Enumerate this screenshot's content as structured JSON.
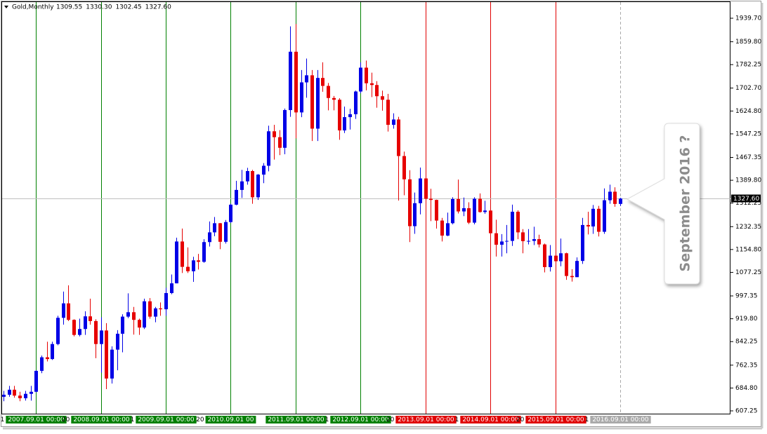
{
  "chart_data": {
    "type": "candlestick",
    "title": "Gold,Monthly",
    "header_values": [
      "1309.55",
      "1330.30",
      "1302.45",
      "1327.60"
    ],
    "last_price_label": "1327.60",
    "annotation": "September 2016 ?",
    "up_color": "#0000e6",
    "down_color": "#e60000",
    "open": [
      655,
      662,
      679,
      659,
      650,
      665,
      672,
      743,
      789,
      783,
      834,
      923,
      972,
      916,
      865,
      885,
      928,
      912,
      834,
      880,
      717,
      815,
      869,
      927,
      942,
      916,
      890,
      979,
      927,
      955,
      952,
      1007,
      1040,
      1182,
      1096,
      1081,
      1118,
      1113,
      1180,
      1213,
      1244,
      1181,
      1248,
      1307,
      1357,
      1386,
      1421,
      1332,
      1409,
      1439,
      1556,
      1536,
      1500,
      1628,
      1826,
      1620,
      1722,
      1746,
      1565,
      1737,
      1710,
      1669,
      1663,
      1559,
      1604,
      1614,
      1691,
      1772,
      1719,
      1713,
      1675,
      1663,
      1578,
      1596,
      1472,
      1393,
      1234,
      1312,
      1396,
      1327,
      1323,
      1253,
      1202,
      1244,
      1326,
      1284,
      1295,
      1246,
      1327,
      1282,
      1287,
      1210,
      1171,
      1182,
      1184,
      1283,
      1213,
      1183,
      1184,
      1190,
      1172,
      1095,
      1134,
      1115,
      1142,
      1065,
      1061,
      1116,
      1238,
      1233,
      1293,
      1215,
      1322,
      1351,
      1309.55
    ],
    "high": [
      675,
      692,
      692,
      672,
      675,
      692,
      745,
      795,
      842,
      842,
      930,
      1012,
      1033,
      918,
      920,
      945,
      988,
      918,
      925,
      905,
      826,
      881,
      935,
      1006,
      960,
      920,
      988,
      990,
      960,
      975,
      1025,
      1070,
      1195,
      1226,
      1162,
      1130,
      1140,
      1190,
      1250,
      1265,
      1245,
      1255,
      1310,
      1388,
      1425,
      1432,
      1425,
      1411,
      1448,
      1575,
      1578,
      1560,
      1633,
      1912,
      1920,
      1764,
      1803,
      1764,
      1764,
      1790,
      1720,
      1676,
      1668,
      1640,
      1632,
      1694,
      1790,
      1796,
      1755,
      1726,
      1694,
      1683,
      1617,
      1605,
      1487,
      1424,
      1348,
      1433,
      1425,
      1361,
      1324,
      1262,
      1280,
      1332,
      1392,
      1331,
      1315,
      1332,
      1345,
      1320,
      1288,
      1256,
      1207,
      1238,
      1307,
      1288,
      1224,
      1224,
      1232,
      1205,
      1175,
      1170,
      1157,
      1192,
      1144,
      1088,
      1128,
      1262,
      1283,
      1306,
      1303,
      1362,
      1375,
      1366,
      1330.3
    ],
    "low": [
      640,
      655,
      652,
      640,
      642,
      642,
      670,
      735,
      775,
      780,
      830,
      900,
      912,
      860,
      860,
      865,
      900,
      786,
      737,
      681,
      700,
      745,
      806,
      922,
      866,
      865,
      885,
      920,
      908,
      930,
      930,
      1003,
      1040,
      1075,
      1075,
      1045,
      1087,
      1110,
      1165,
      1200,
      1156,
      1175,
      1245,
      1305,
      1330,
      1375,
      1310,
      1323,
      1380,
      1420,
      1460,
      1475,
      1478,
      1605,
      1532,
      1604,
      1670,
      1523,
      1523,
      1690,
      1627,
      1627,
      1527,
      1550,
      1562,
      1598,
      1685,
      1695,
      1672,
      1636,
      1626,
      1555,
      1565,
      1321,
      1339,
      1180,
      1208,
      1274,
      1292,
      1251,
      1226,
      1182,
      1200,
      1240,
      1277,
      1268,
      1241,
      1240,
      1280,
      1276,
      1205,
      1131,
      1131,
      1142,
      1167,
      1190,
      1142,
      1172,
      1170,
      1162,
      1077,
      1080,
      1099,
      1098,
      1052,
      1046,
      1061,
      1106,
      1206,
      1208,
      1199,
      1208,
      1310,
      1300,
      1302.45
    ],
    "close": [
      662,
      679,
      659,
      650,
      665,
      672,
      743,
      789,
      783,
      834,
      923,
      972,
      916,
      865,
      885,
      928,
      912,
      834,
      880,
      717,
      815,
      869,
      927,
      942,
      916,
      890,
      979,
      927,
      955,
      952,
      1007,
      1040,
      1182,
      1096,
      1081,
      1118,
      1113,
      1180,
      1213,
      1244,
      1181,
      1248,
      1307,
      1357,
      1386,
      1421,
      1332,
      1409,
      1439,
      1556,
      1536,
      1500,
      1628,
      1826,
      1620,
      1722,
      1746,
      1565,
      1737,
      1710,
      1669,
      1663,
      1559,
      1604,
      1614,
      1691,
      1772,
      1719,
      1713,
      1675,
      1663,
      1578,
      1596,
      1472,
      1393,
      1234,
      1312,
      1396,
      1327,
      1323,
      1253,
      1202,
      1244,
      1326,
      1284,
      1295,
      1246,
      1327,
      1282,
      1287,
      1210,
      1171,
      1182,
      1184,
      1283,
      1213,
      1183,
      1184,
      1190,
      1172,
      1095,
      1134,
      1115,
      1142,
      1065,
      1061,
      1116,
      1238,
      1233,
      1293,
      1215,
      1322,
      1351,
      1309.55,
      1327.6
    ],
    "ylim": [
      597.7,
      1994.4
    ],
    "yticks": [
      {
        "value": 607.25,
        "label": "607.25"
      },
      {
        "value": 684.8,
        "label": "684.80"
      },
      {
        "value": 762.35,
        "label": "762.35"
      },
      {
        "value": 842.25,
        "label": "842.25"
      },
      {
        "value": 919.8,
        "label": "919.80"
      },
      {
        "value": 997.35,
        "label": "997.35"
      },
      {
        "value": 1077.25,
        "label": "1077.25"
      },
      {
        "value": 1154.8,
        "label": "1154.80"
      },
      {
        "value": 1232.35,
        "label": "1232.35"
      },
      {
        "value": 1312.25,
        "label": "1312.25"
      },
      {
        "value": 1389.8,
        "label": "1389.80"
      },
      {
        "value": 1467.35,
        "label": "1467.35"
      },
      {
        "value": 1547.25,
        "label": "1547.25"
      },
      {
        "value": 1624.8,
        "label": "1624.80"
      },
      {
        "value": 1702.7,
        "label": "1702.70"
      },
      {
        "value": 1782.25,
        "label": "1782.25"
      },
      {
        "value": 1859.8,
        "label": "1859.80"
      },
      {
        "value": 1939.7,
        "label": "1939.70"
      }
    ],
    "time_labels": [
      {
        "label": "1"
      },
      {
        "label": "2007.09.01 00:00",
        "color": "#008000"
      },
      {
        "label": "20"
      },
      {
        "label": "2008.09.01 00:00",
        "color": "#008000"
      },
      {
        "label": "1"
      },
      {
        "label": "2009.09.01 00:00",
        "color": "#008000"
      },
      {
        "label": "20"
      },
      {
        "label": "2010.09.01 00",
        "color": "#008000"
      },
      {
        "label": "2011.09.01 00:00",
        "color": "#008000"
      },
      {
        "label": "1"
      },
      {
        "label": "2012.09.01 00:00",
        "color": "#008000"
      },
      {
        "label": "20"
      },
      {
        "label": "2013.09.01 00:00",
        "color": "#e00000"
      },
      {
        "label": "1"
      },
      {
        "label": "2014.09.01 00:00",
        "color": "#e00000"
      },
      {
        "label": "20"
      },
      {
        "label": "2015.09.01 00:00",
        "color": "#e00000"
      },
      {
        "label": "1"
      },
      {
        "label": "2016.09.01 00:00",
        "color": "#aaaaaa",
        "style": "dashed"
      }
    ]
  }
}
